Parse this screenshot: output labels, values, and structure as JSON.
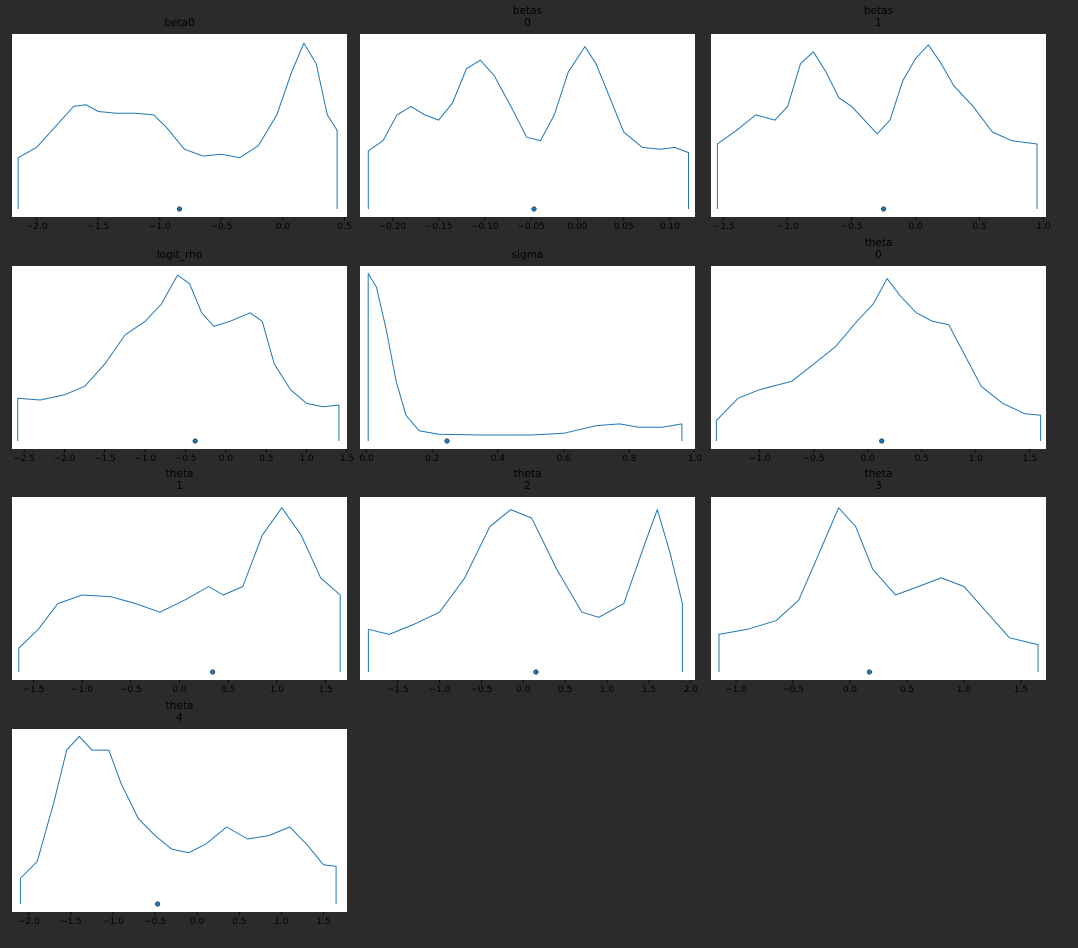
{
  "figure": {
    "background": "#2b2b2b",
    "panel_background": "#ffffff",
    "line_color": "#1f77b4",
    "point_color": "#1f77b4"
  },
  "chart_data": [
    {
      "type": "line",
      "title": [
        "beta0"
      ],
      "xlim": [
        -2.2,
        0.52
      ],
      "xticks": [
        -2.0,
        -1.5,
        -1.0,
        -0.5,
        0.0,
        0.5
      ],
      "tick_labels": [
        "−2.0",
        "−1.5",
        "−1.0",
        "−0.5",
        "0.0",
        "0.5"
      ],
      "point_estimate": -0.84,
      "density": [
        [
          -2.15,
          0.3
        ],
        [
          -2.0,
          0.36
        ],
        [
          -1.85,
          0.48
        ],
        [
          -1.7,
          0.6
        ],
        [
          -1.6,
          0.61
        ],
        [
          -1.5,
          0.57
        ],
        [
          -1.35,
          0.56
        ],
        [
          -1.2,
          0.56
        ],
        [
          -1.05,
          0.55
        ],
        [
          -0.95,
          0.48
        ],
        [
          -0.8,
          0.35
        ],
        [
          -0.65,
          0.31
        ],
        [
          -0.5,
          0.32
        ],
        [
          -0.35,
          0.3
        ],
        [
          -0.2,
          0.37
        ],
        [
          -0.05,
          0.55
        ],
        [
          0.07,
          0.8
        ],
        [
          0.17,
          0.97
        ],
        [
          0.27,
          0.85
        ],
        [
          0.36,
          0.55
        ],
        [
          0.44,
          0.46
        ]
      ]
    },
    {
      "type": "line",
      "title": [
        "betas",
        "0"
      ],
      "xlim": [
        -0.235,
        0.127
      ],
      "xticks": [
        -0.2,
        -0.15,
        -0.1,
        -0.05,
        0.0,
        0.05,
        0.1
      ],
      "tick_labels": [
        "−0.20",
        "−0.15",
        "−0.10",
        "−0.05",
        "0.00",
        "0.05",
        "0.10"
      ],
      "point_estimate": -0.047,
      "density": [
        [
          -0.226,
          0.34
        ],
        [
          -0.21,
          0.4
        ],
        [
          -0.195,
          0.55
        ],
        [
          -0.18,
          0.6
        ],
        [
          -0.165,
          0.55
        ],
        [
          -0.15,
          0.52
        ],
        [
          -0.135,
          0.62
        ],
        [
          -0.12,
          0.82
        ],
        [
          -0.105,
          0.87
        ],
        [
          -0.09,
          0.78
        ],
        [
          -0.07,
          0.58
        ],
        [
          -0.055,
          0.42
        ],
        [
          -0.04,
          0.4
        ],
        [
          -0.025,
          0.55
        ],
        [
          -0.01,
          0.8
        ],
        [
          0.008,
          0.95
        ],
        [
          0.02,
          0.85
        ],
        [
          0.035,
          0.65
        ],
        [
          0.05,
          0.45
        ],
        [
          0.07,
          0.36
        ],
        [
          0.09,
          0.35
        ],
        [
          0.105,
          0.36
        ],
        [
          0.12,
          0.33
        ]
      ]
    },
    {
      "type": "line",
      "title": [
        "betas",
        "1"
      ],
      "xlim": [
        -1.6,
        1.02
      ],
      "xticks": [
        -1.5,
        -1.0,
        -0.5,
        0.0,
        0.5,
        1.0
      ],
      "tick_labels": [
        "−1.5",
        "−1.0",
        "−0.5",
        "0.0",
        "0.5",
        "1.0"
      ],
      "point_estimate": -0.25,
      "density": [
        [
          -1.55,
          0.38
        ],
        [
          -1.4,
          0.46
        ],
        [
          -1.25,
          0.55
        ],
        [
          -1.1,
          0.52
        ],
        [
          -1.0,
          0.6
        ],
        [
          -0.9,
          0.85
        ],
        [
          -0.8,
          0.92
        ],
        [
          -0.7,
          0.8
        ],
        [
          -0.6,
          0.65
        ],
        [
          -0.5,
          0.6
        ],
        [
          -0.4,
          0.52
        ],
        [
          -0.3,
          0.44
        ],
        [
          -0.2,
          0.52
        ],
        [
          -0.1,
          0.75
        ],
        [
          0.0,
          0.88
        ],
        [
          0.1,
          0.96
        ],
        [
          0.2,
          0.85
        ],
        [
          0.3,
          0.72
        ],
        [
          0.45,
          0.6
        ],
        [
          0.6,
          0.45
        ],
        [
          0.75,
          0.4
        ],
        [
          0.95,
          0.38
        ]
      ]
    },
    {
      "type": "line",
      "title": [
        "logit_rho"
      ],
      "xlim": [
        -2.65,
        1.5
      ],
      "xticks": [
        -2.5,
        -2.0,
        -1.5,
        -1.0,
        -0.5,
        0.0,
        0.5,
        1.0,
        1.5
      ],
      "tick_labels": [
        "−2.5",
        "−2.0",
        "−1.5",
        "−1.0",
        "−0.5",
        "0.0",
        "0.5",
        "1.0",
        "1.5"
      ],
      "point_estimate": -0.38,
      "density": [
        [
          -2.58,
          0.25
        ],
        [
          -2.3,
          0.24
        ],
        [
          -2.0,
          0.27
        ],
        [
          -1.75,
          0.32
        ],
        [
          -1.5,
          0.45
        ],
        [
          -1.25,
          0.62
        ],
        [
          -1.0,
          0.7
        ],
        [
          -0.8,
          0.8
        ],
        [
          -0.6,
          0.97
        ],
        [
          -0.45,
          0.92
        ],
        [
          -0.3,
          0.75
        ],
        [
          -0.15,
          0.67
        ],
        [
          0.05,
          0.7
        ],
        [
          0.3,
          0.75
        ],
        [
          0.45,
          0.7
        ],
        [
          0.6,
          0.45
        ],
        [
          0.8,
          0.3
        ],
        [
          1.0,
          0.22
        ],
        [
          1.2,
          0.2
        ],
        [
          1.4,
          0.21
        ]
      ]
    },
    {
      "type": "line",
      "title": [
        "sigma"
      ],
      "xlim": [
        -0.02,
        1.0
      ],
      "xticks": [
        0.0,
        0.2,
        0.4,
        0.6,
        0.8,
        1.0
      ],
      "tick_labels": [
        "0.0",
        "0.2",
        "0.4",
        "0.6",
        "0.8",
        "1.0"
      ],
      "point_estimate": 0.245,
      "density": [
        [
          0.005,
          0.98
        ],
        [
          0.03,
          0.9
        ],
        [
          0.06,
          0.65
        ],
        [
          0.09,
          0.35
        ],
        [
          0.12,
          0.15
        ],
        [
          0.16,
          0.06
        ],
        [
          0.22,
          0.04
        ],
        [
          0.35,
          0.035
        ],
        [
          0.5,
          0.035
        ],
        [
          0.6,
          0.045
        ],
        [
          0.7,
          0.09
        ],
        [
          0.77,
          0.1
        ],
        [
          0.83,
          0.08
        ],
        [
          0.9,
          0.08
        ],
        [
          0.96,
          0.1
        ]
      ]
    },
    {
      "type": "line",
      "title": [
        "theta",
        "0"
      ],
      "xlim": [
        -1.45,
        1.65
      ],
      "xticks": [
        -1.0,
        -0.5,
        0.0,
        0.5,
        1.0,
        1.5
      ],
      "tick_labels": [
        "−1.0",
        "−0.5",
        "0.0",
        "0.5",
        "1.0",
        "1.5"
      ],
      "point_estimate": 0.13,
      "density": [
        [
          -1.4,
          0.12
        ],
        [
          -1.2,
          0.25
        ],
        [
          -1.0,
          0.3
        ],
        [
          -0.7,
          0.35
        ],
        [
          -0.5,
          0.45
        ],
        [
          -0.3,
          0.55
        ],
        [
          -0.1,
          0.7
        ],
        [
          0.05,
          0.8
        ],
        [
          0.18,
          0.95
        ],
        [
          0.3,
          0.85
        ],
        [
          0.45,
          0.75
        ],
        [
          0.6,
          0.7
        ],
        [
          0.75,
          0.68
        ],
        [
          0.9,
          0.5
        ],
        [
          1.05,
          0.32
        ],
        [
          1.25,
          0.22
        ],
        [
          1.45,
          0.16
        ],
        [
          1.6,
          0.15
        ]
      ]
    },
    {
      "type": "line",
      "title": [
        "theta",
        "1"
      ],
      "xlim": [
        -1.72,
        1.72
      ],
      "xticks": [
        -1.5,
        -1.0,
        -0.5,
        0.0,
        0.5,
        1.0,
        1.5
      ],
      "tick_labels": [
        "−1.5",
        "−1.0",
        "−0.5",
        "0.0",
        "0.5",
        "1.0",
        "1.5"
      ],
      "point_estimate": 0.34,
      "density": [
        [
          -1.65,
          0.14
        ],
        [
          -1.45,
          0.25
        ],
        [
          -1.25,
          0.4
        ],
        [
          -1.0,
          0.45
        ],
        [
          -0.7,
          0.44
        ],
        [
          -0.45,
          0.4
        ],
        [
          -0.2,
          0.35
        ],
        [
          0.05,
          0.42
        ],
        [
          0.3,
          0.5
        ],
        [
          0.45,
          0.45
        ],
        [
          0.65,
          0.5
        ],
        [
          0.85,
          0.8
        ],
        [
          1.05,
          0.96
        ],
        [
          1.25,
          0.8
        ],
        [
          1.45,
          0.55
        ],
        [
          1.65,
          0.45
        ]
      ]
    },
    {
      "type": "line",
      "title": [
        "theta",
        "2"
      ],
      "xlim": [
        -1.95,
        2.05
      ],
      "xticks": [
        -1.5,
        -1.0,
        -0.5,
        0.0,
        0.5,
        1.0,
        1.5,
        2.0
      ],
      "tick_labels": [
        "−1.5",
        "−1.0",
        "−0.5",
        "0.0",
        "0.5",
        "1.0",
        "1.5",
        "2.0"
      ],
      "point_estimate": 0.15,
      "density": [
        [
          -1.85,
          0.25
        ],
        [
          -1.6,
          0.22
        ],
        [
          -1.3,
          0.28
        ],
        [
          -1.0,
          0.35
        ],
        [
          -0.7,
          0.55
        ],
        [
          -0.4,
          0.85
        ],
        [
          -0.15,
          0.95
        ],
        [
          0.1,
          0.9
        ],
        [
          0.4,
          0.6
        ],
        [
          0.7,
          0.35
        ],
        [
          0.9,
          0.32
        ],
        [
          1.2,
          0.4
        ],
        [
          1.45,
          0.75
        ],
        [
          1.6,
          0.95
        ],
        [
          1.75,
          0.7
        ],
        [
          1.9,
          0.4
        ]
      ]
    },
    {
      "type": "line",
      "title": [
        "theta",
        "3"
      ],
      "xlim": [
        -1.22,
        1.72
      ],
      "xticks": [
        -1.0,
        -0.5,
        0.0,
        0.5,
        1.0,
        1.5
      ],
      "tick_labels": [
        "−1.0",
        "−0.5",
        "0.0",
        "0.5",
        "1.0",
        "1.5"
      ],
      "point_estimate": 0.17,
      "density": [
        [
          -1.15,
          0.22
        ],
        [
          -0.9,
          0.25
        ],
        [
          -0.65,
          0.3
        ],
        [
          -0.45,
          0.42
        ],
        [
          -0.3,
          0.65
        ],
        [
          -0.1,
          0.96
        ],
        [
          0.05,
          0.85
        ],
        [
          0.2,
          0.6
        ],
        [
          0.4,
          0.45
        ],
        [
          0.6,
          0.5
        ],
        [
          0.8,
          0.55
        ],
        [
          1.0,
          0.5
        ],
        [
          1.2,
          0.35
        ],
        [
          1.4,
          0.2
        ],
        [
          1.65,
          0.16
        ]
      ]
    },
    {
      "type": "line",
      "title": [
        "theta",
        "4"
      ],
      "xlim": [
        -2.2,
        1.78
      ],
      "xticks": [
        -2.0,
        -1.5,
        -1.0,
        -0.5,
        0.0,
        0.5,
        1.0,
        1.5
      ],
      "tick_labels": [
        "−2.0",
        "−1.5",
        "−1.0",
        "−0.5",
        "0.0",
        "0.5",
        "1.0",
        "1.5"
      ],
      "point_estimate": -0.47,
      "density": [
        [
          -2.1,
          0.15
        ],
        [
          -1.9,
          0.25
        ],
        [
          -1.7,
          0.6
        ],
        [
          -1.55,
          0.9
        ],
        [
          -1.4,
          0.98
        ],
        [
          -1.25,
          0.9
        ],
        [
          -1.05,
          0.9
        ],
        [
          -0.9,
          0.7
        ],
        [
          -0.7,
          0.5
        ],
        [
          -0.5,
          0.4
        ],
        [
          -0.3,
          0.32
        ],
        [
          -0.1,
          0.3
        ],
        [
          0.1,
          0.35
        ],
        [
          0.35,
          0.45
        ],
        [
          0.6,
          0.38
        ],
        [
          0.85,
          0.4
        ],
        [
          1.1,
          0.45
        ],
        [
          1.3,
          0.35
        ],
        [
          1.5,
          0.23
        ],
        [
          1.65,
          0.22
        ]
      ]
    }
  ]
}
